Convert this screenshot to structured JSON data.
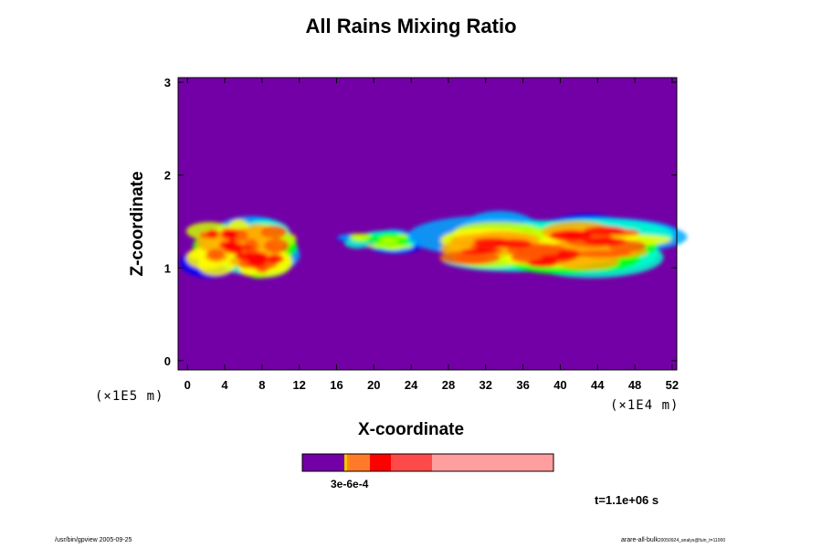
{
  "chart_data": {
    "type": "heatmap",
    "title": "All Rains Mixing Ratio",
    "xlabel": "X-coordinate",
    "ylabel": "Z-coordinate",
    "x_ticks": [
      "0",
      "4",
      "8",
      "12",
      "16",
      "20",
      "24",
      "28",
      "32",
      "36",
      "40",
      "44",
      "48",
      "52"
    ],
    "y_ticks": [
      "0",
      "1",
      "2",
      "3"
    ],
    "xlim": [
      -1,
      52.5
    ],
    "ylim": [
      -0.1,
      3.05
    ],
    "x_scale_label": "(×1E4 m)",
    "y_scale_label": "(×1E5 m)",
    "background_color": "#7300a6",
    "colormap": [
      "#7300a6",
      "#0000ff",
      "#00aaff",
      "#00ffcc",
      "#00ff00",
      "#ccff00",
      "#ffff00",
      "#ffaa00",
      "#ff5500",
      "#ff0000"
    ],
    "colorbar": {
      "colors": [
        "#7300a6",
        "#f5c200",
        "#ff8c00",
        "#ff7a2a",
        "#ff0000",
        "#ff4a4a",
        "#ff9e9e"
      ],
      "label": "3e-6e-4"
    },
    "regions": [
      {
        "x": [
          -1,
          12
        ],
        "z": [
          0.85,
          1.68
        ],
        "peak": "high"
      },
      {
        "x": [
          16,
          25
        ],
        "z": [
          1.15,
          1.45
        ],
        "peak": "low"
      },
      {
        "x": [
          25,
          52.5
        ],
        "z": [
          0.88,
          1.68
        ],
        "peak": "high"
      }
    ]
  },
  "time_label": "t=1.1e+06 s",
  "footer_left": "/usr/bin/gpview 2005-09-25",
  "footer_right_main": "arare-all-bulk",
  "footer_right_small": "20050924_analys@fuin_t=11000"
}
